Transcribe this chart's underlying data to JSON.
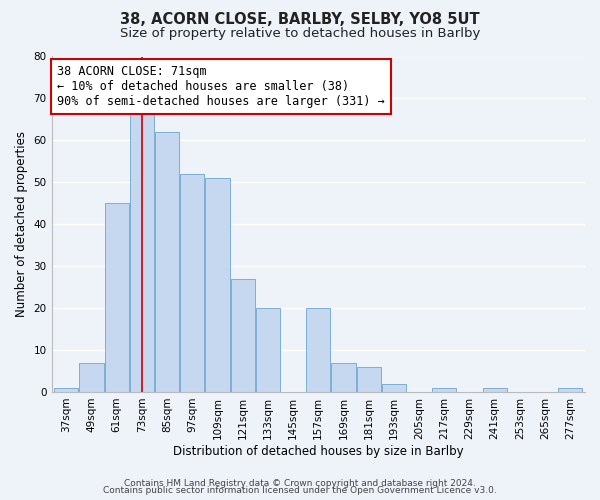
{
  "title": "38, ACORN CLOSE, BARLBY, SELBY, YO8 5UT",
  "subtitle": "Size of property relative to detached houses in Barlby",
  "xlabel": "Distribution of detached houses by size in Barlby",
  "ylabel": "Number of detached properties",
  "bin_labels": [
    "37sqm",
    "49sqm",
    "61sqm",
    "73sqm",
    "85sqm",
    "97sqm",
    "109sqm",
    "121sqm",
    "133sqm",
    "145sqm",
    "157sqm",
    "169sqm",
    "181sqm",
    "193sqm",
    "205sqm",
    "217sqm",
    "229sqm",
    "241sqm",
    "253sqm",
    "265sqm",
    "277sqm"
  ],
  "bin_centers": [
    37,
    49,
    61,
    73,
    85,
    97,
    109,
    121,
    133,
    145,
    157,
    169,
    181,
    193,
    205,
    217,
    229,
    241,
    253,
    265,
    277
  ],
  "counts": [
    1,
    7,
    45,
    67,
    62,
    52,
    51,
    27,
    20,
    0,
    20,
    7,
    6,
    2,
    0,
    1,
    0,
    1,
    0,
    0,
    1
  ],
  "bar_color": "#c5d8f0",
  "bar_edge_color": "#7bafd4",
  "vline_x": 73,
  "vline_color": "#cc0000",
  "annotation_line1": "38 ACORN CLOSE: 71sqm",
  "annotation_line2": "← 10% of detached houses are smaller (38)",
  "annotation_line3": "90% of semi-detached houses are larger (331) →",
  "annotation_box_color": "#ffffff",
  "annotation_box_edge_color": "#cc0000",
  "ylim": [
    0,
    80
  ],
  "yticks": [
    0,
    10,
    20,
    30,
    40,
    50,
    60,
    70,
    80
  ],
  "footer_line1": "Contains HM Land Registry data © Crown copyright and database right 2024.",
  "footer_line2": "Contains public sector information licensed under the Open Government Licence v3.0.",
  "background_color": "#eef2f9",
  "grid_color": "#ffffff",
  "title_fontsize": 10.5,
  "subtitle_fontsize": 9.5,
  "axis_label_fontsize": 8.5,
  "tick_fontsize": 7.5,
  "annotation_fontsize": 8.5,
  "footer_fontsize": 6.5,
  "bar_width": 11.5
}
